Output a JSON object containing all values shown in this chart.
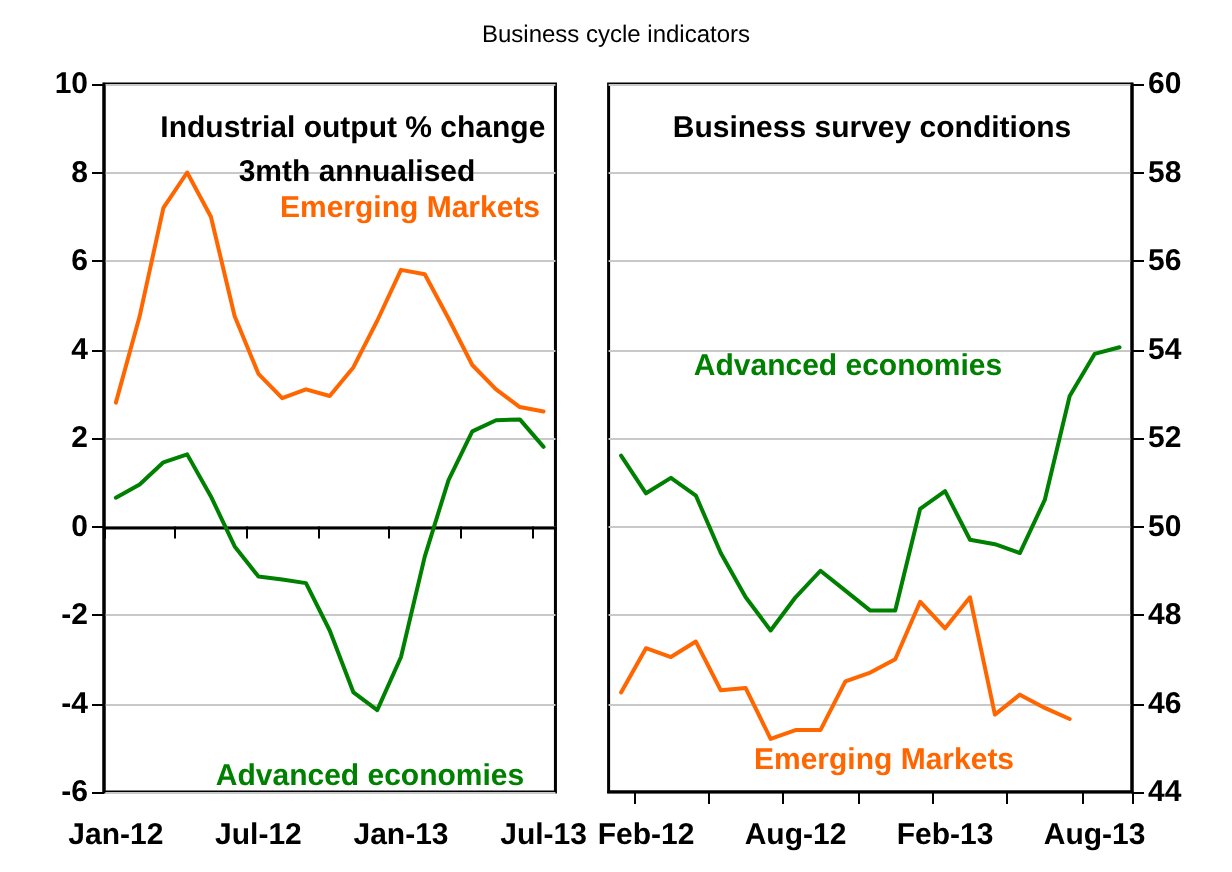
{
  "chart_data": [
    {
      "type": "line",
      "title": "Business cycle indicators",
      "subtitle": "Industrial output % change 3mth annualised",
      "categories": [
        "Jan-12",
        null,
        null,
        null,
        null,
        null,
        "Jul-12",
        null,
        null,
        null,
        null,
        null,
        "Jan-13",
        null,
        null,
        null,
        null,
        null,
        "Jul-13"
      ],
      "series": [
        {
          "name": "Emerging Markets",
          "color": "#ff6600",
          "values": [
            2.8,
            4.75,
            7.2,
            8.0,
            7.0,
            4.75,
            3.45,
            2.9,
            3.1,
            2.95,
            3.6,
            4.65,
            5.8,
            5.7,
            4.7,
            3.65,
            3.1,
            2.7,
            2.6
          ]
        },
        {
          "name": "Advanced economies",
          "color": "#008000",
          "values": [
            0.65,
            0.95,
            1.45,
            1.63,
            0.68,
            -0.45,
            -1.13,
            -1.2,
            -1.28,
            -2.35,
            -3.75,
            -4.15,
            -2.95,
            -0.68,
            1.05,
            2.15,
            2.4,
            2.42,
            1.8
          ]
        }
      ],
      "ylim": [
        -6,
        10
      ],
      "yticks": [
        -6,
        -4,
        -2,
        0,
        2,
        4,
        6,
        8,
        10
      ],
      "grid": "y"
    },
    {
      "type": "line",
      "subtitle": "Business survey conditions",
      "categories": [
        null,
        "Feb-12",
        null,
        null,
        null,
        null,
        null,
        "Aug-12",
        null,
        null,
        null,
        null,
        null,
        "Feb-13",
        null,
        null,
        null,
        null,
        null,
        "Aug-13",
        null
      ],
      "series": [
        {
          "name": "Emerging Markets",
          "color": "#ff6600",
          "axis": "y2",
          "values": [
            46.25,
            47.25,
            47.05,
            47.4,
            46.3,
            46.35,
            45.2,
            45.4,
            45.4,
            46.5,
            46.7,
            47.0,
            48.3,
            47.7,
            48.4,
            45.75,
            46.2,
            45.9,
            45.65,
            null,
            null
          ]
        },
        {
          "name": "Advanced economies",
          "color": "#008000",
          "axis": "y2",
          "values": [
            51.6,
            50.75,
            51.1,
            50.7,
            49.4,
            48.4,
            47.65,
            48.4,
            49.0,
            48.55,
            48.1,
            48.1,
            50.4,
            50.8,
            49.7,
            49.6,
            49.4,
            50.6,
            52.95,
            53.9,
            54.05
          ]
        }
      ],
      "y2lim": [
        44,
        60
      ],
      "y2ticks": [
        44,
        46,
        48,
        50,
        52,
        54,
        56,
        58,
        60
      ],
      "grid": "y"
    }
  ]
}
